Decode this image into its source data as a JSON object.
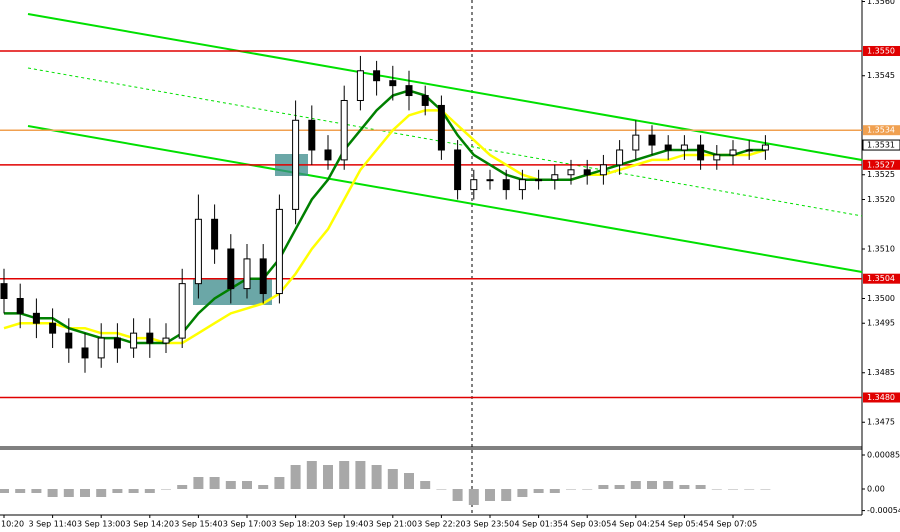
{
  "chart_data": {
    "type": "candlestick",
    "categories": [
      "10:20",
      null,
      null,
      "3 Sep 11:40",
      null,
      null,
      "3 Sep 13:00",
      null,
      null,
      "3 Sep 14:20",
      null,
      null,
      "3 Sep 15:40",
      null,
      null,
      "3 Sep 17:00",
      null,
      null,
      "3 Sep 18:20",
      null,
      null,
      "3 Sep 19:40",
      null,
      null,
      "3 Sep 21:00",
      null,
      null,
      "3 Sep 22:20",
      null,
      null,
      "3 Sep 23:50",
      null,
      null,
      "4 Sep 01:35",
      null,
      null,
      "4 Sep 03:05",
      null,
      null,
      "4 Sep 04:25",
      null,
      null,
      "4 Sep 05:45",
      null,
      null,
      "4 Sep 07:05",
      null,
      null
    ],
    "open": [
      1.3503,
      1.35,
      1.3497,
      1.3495,
      1.3493,
      1.349,
      1.3488,
      1.3492,
      1.349,
      1.3493,
      1.3491,
      1.3492,
      1.3503,
      1.3516,
      1.351,
      1.3502,
      1.3508,
      1.3501,
      1.3518,
      1.3536,
      1.353,
      1.3528,
      1.354,
      1.3546,
      1.3544,
      1.3543,
      1.3541,
      1.3539,
      1.353,
      1.3522,
      1.3524,
      1.3524,
      1.3522,
      1.3524,
      1.3524,
      1.3525,
      1.3526,
      1.3525,
      1.3527,
      1.353,
      1.3533,
      1.3531,
      1.353,
      1.3531,
      1.3528,
      1.3529,
      1.353,
      1.353
    ],
    "high": [
      1.3506,
      1.3503,
      1.35,
      1.3498,
      1.3496,
      1.3493,
      1.3495,
      1.3495,
      1.3496,
      1.3496,
      1.3495,
      1.3506,
      1.3521,
      1.3519,
      1.3513,
      1.3511,
      1.3511,
      1.3521,
      1.354,
      1.3539,
      1.3533,
      1.3543,
      1.3549,
      1.3548,
      1.3547,
      1.3546,
      1.3543,
      1.3541,
      1.3532,
      1.3526,
      1.3526,
      1.3526,
      1.3526,
      1.3526,
      1.3527,
      1.3528,
      1.3528,
      1.3529,
      1.3532,
      1.3536,
      1.3535,
      1.3533,
      1.3533,
      1.3533,
      1.3531,
      1.3532,
      1.3532,
      1.3533
    ],
    "low": [
      1.3497,
      1.3494,
      1.3492,
      1.349,
      1.3487,
      1.3485,
      1.3486,
      1.3487,
      1.3488,
      1.3488,
      1.3489,
      1.349,
      1.35,
      1.3507,
      1.3499,
      1.35,
      1.3499,
      1.3499,
      1.3515,
      1.3527,
      1.3526,
      1.3526,
      1.3538,
      1.3541,
      1.354,
      1.3538,
      1.3537,
      1.3528,
      1.352,
      1.352,
      1.3522,
      1.352,
      1.352,
      1.3522,
      1.3522,
      1.3523,
      1.3523,
      1.3523,
      1.3525,
      1.3528,
      1.3529,
      1.3528,
      1.3528,
      1.3526,
      1.3526,
      1.3527,
      1.3528,
      1.3528
    ],
    "close": [
      1.35,
      1.3497,
      1.3495,
      1.3493,
      1.349,
      1.3488,
      1.3492,
      1.349,
      1.3493,
      1.3491,
      1.3492,
      1.3503,
      1.3516,
      1.351,
      1.3502,
      1.3508,
      1.3501,
      1.3518,
      1.3536,
      1.353,
      1.3528,
      1.354,
      1.3546,
      1.3544,
      1.3543,
      1.3541,
      1.3539,
      1.353,
      1.3522,
      1.3524,
      1.3524,
      1.3522,
      1.3524,
      1.3524,
      1.3525,
      1.3526,
      1.3525,
      1.3527,
      1.353,
      1.3533,
      1.3531,
      1.353,
      1.3531,
      1.3528,
      1.3529,
      1.353,
      1.353,
      1.3531
    ],
    "moving_averages": [
      {
        "color": "#ffff00",
        "values": [
          1.3494,
          1.3495,
          1.3495,
          1.3495,
          1.3494,
          1.3494,
          1.3493,
          1.3493,
          1.3492,
          1.3492,
          1.3491,
          1.3491,
          1.3493,
          1.3495,
          1.3497,
          1.3498,
          1.3499,
          1.3501,
          1.3505,
          1.351,
          1.3514,
          1.352,
          1.3526,
          1.353,
          1.3534,
          1.3537,
          1.3538,
          1.3538,
          1.3535,
          1.3532,
          1.3529,
          1.3527,
          1.3525,
          1.3524,
          1.3524,
          1.3524,
          1.3525,
          1.3525,
          1.3526,
          1.3527,
          1.3528,
          1.3528,
          1.3529,
          1.3529,
          1.3529,
          1.3529,
          1.3529,
          1.353
        ]
      },
      {
        "color": "#008000",
        "values": [
          1.3497,
          1.3497,
          1.3496,
          1.3496,
          1.3494,
          1.3493,
          1.3492,
          1.3492,
          1.3491,
          1.3491,
          1.3491,
          1.3493,
          1.3497,
          1.35,
          1.3502,
          1.3504,
          1.3504,
          1.3508,
          1.3514,
          1.352,
          1.3524,
          1.353,
          1.3534,
          1.3538,
          1.3541,
          1.3542,
          1.3541,
          1.3538,
          1.3533,
          1.3529,
          1.3527,
          1.3525,
          1.3524,
          1.3524,
          1.3524,
          1.3524,
          1.3525,
          1.3526,
          1.3527,
          1.3528,
          1.3529,
          1.353,
          1.353,
          1.353,
          1.3529,
          1.3529,
          1.353,
          1.353
        ]
      }
    ],
    "ylim": [
      1.347,
      1.35603
    ],
    "yticks": [
      {
        "value": 1.3475,
        "label": "1.3475"
      },
      {
        "value": 1.3485,
        "label": "1.3485"
      },
      {
        "value": 1.3495,
        "label": "1.3495"
      },
      {
        "value": 1.35,
        "label": "1.3500"
      },
      {
        "value": 1.351,
        "label": "1.3510"
      },
      {
        "value": 1.352,
        "label": "1.3520"
      },
      {
        "value": 1.3525,
        "label": "1.3525"
      },
      {
        "value": 1.3545,
        "label": "1.3545"
      },
      {
        "value": 1.356,
        "label": "1.3560"
      }
    ],
    "levels": [
      {
        "value": 1.355,
        "label": "1.3550",
        "color": "#e00000"
      },
      {
        "value": 1.3534,
        "label": "1.3534",
        "color": "#f0a050"
      },
      {
        "value": 1.3527,
        "label": "1.3527",
        "color": "#e00000"
      },
      {
        "value": 1.3504,
        "label": "1.3504",
        "color": "#e00000"
      },
      {
        "value": 1.348,
        "label": "1.3480",
        "color": "#e00000"
      }
    ],
    "current_price": {
      "value": 1.3531,
      "label": "1.3531"
    },
    "oscillator": {
      "type": "bar",
      "color": "#a8a8a8",
      "values": [
        -0.0001,
        -0.0001,
        -0.0001,
        -0.0002,
        -0.0002,
        -0.0002,
        -0.0002,
        -0.0001,
        -0.0001,
        -0.0001,
        0,
        0.0001,
        0.0003,
        0.0003,
        0.0002,
        0.0002,
        0.0001,
        0.0003,
        0.0006,
        0.0007,
        0.0006,
        0.0007,
        0.0007,
        0.0006,
        0.0005,
        0.0004,
        0.0002,
        0,
        -0.0003,
        -0.0004,
        -0.0003,
        -0.0003,
        -0.0002,
        -0.0001,
        -0.0001,
        0,
        0,
        0.0001,
        0.0001,
        0.0002,
        0.0002,
        0.0002,
        0.0001,
        0.0001,
        0,
        0,
        0,
        0
      ],
      "ylim": [
        -0.0006,
        0.00095
      ],
      "yticks": [
        {
          "value": 0.00085,
          "label": "0.00085"
        },
        {
          "value": 0,
          "label": "0.00"
        },
        {
          "value": -0.00054,
          "label": "-0.00054"
        }
      ]
    }
  }
}
